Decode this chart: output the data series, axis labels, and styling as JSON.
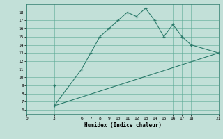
{
  "xlabel": "Humidex (Indice chaleur)",
  "line1_x": [
    3,
    3,
    6,
    7,
    8,
    9,
    10,
    11,
    12,
    13,
    14,
    15,
    16,
    17,
    18,
    21
  ],
  "line1_y": [
    9,
    6.5,
    11,
    13,
    15,
    16,
    17,
    18,
    17.5,
    18.5,
    17,
    15,
    16.5,
    15,
    14,
    13
  ],
  "line2_x": [
    3,
    21
  ],
  "line2_y": [
    6.5,
    13
  ],
  "xlim": [
    0,
    21
  ],
  "ylim": [
    5.5,
    19
  ],
  "xticks": [
    0,
    3,
    6,
    7,
    8,
    9,
    10,
    11,
    12,
    13,
    14,
    15,
    16,
    17,
    18,
    21
  ],
  "yticks": [
    6,
    7,
    8,
    9,
    10,
    11,
    12,
    13,
    14,
    15,
    16,
    17,
    18
  ],
  "line_color": "#2a7a6a",
  "bg_color": "#c2e0d8",
  "grid_color": "#5aaa95"
}
